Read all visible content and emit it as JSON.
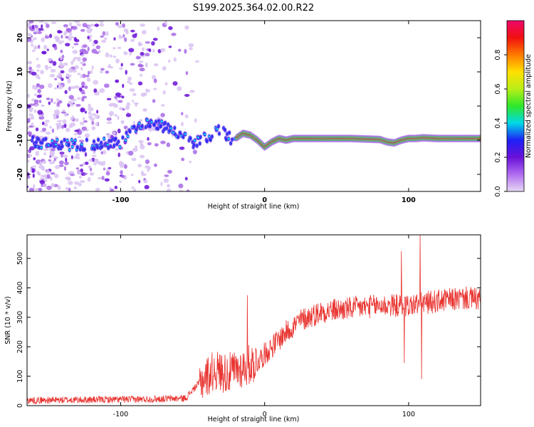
{
  "title": "S199.2025.364.02.00.R22",
  "colors": {
    "axis": "#000000",
    "snr_line": "#e8332f",
    "spec_faint": "#d9c3f2",
    "spec_mid": "#a86ae8",
    "spec_strong": "#6a10d8",
    "spec_blue": "#1e20f5",
    "spec_cyan": "#10d8ee",
    "spec_green": "#2ee82a",
    "spec_red": "#f01010"
  },
  "chart_data": [
    {
      "type": "heatmap",
      "title": "S199.2025.364.02.00.R22",
      "xlabel": "Height of straight line (km)",
      "ylabel": "Frequency (Hz)",
      "xlim": [
        -165,
        150
      ],
      "ylim": [
        -25,
        25
      ],
      "xticks": [
        -100,
        0,
        100
      ],
      "xtick_labels": [
        "-100",
        "0",
        "100"
      ],
      "yticks": [
        20,
        10,
        0,
        -10,
        -20
      ],
      "ytick_labels": [
        "20",
        "10",
        "0",
        "-10",
        "-20"
      ],
      "grid": false,
      "ridge": {
        "x": [
          -165,
          -150,
          -130,
          -110,
          -100,
          -90,
          -80,
          -70,
          -60,
          -50,
          -40,
          -30,
          -22,
          -15,
          -10,
          -5,
          0,
          5,
          10,
          15,
          20,
          30,
          40,
          60,
          80,
          85,
          90,
          95,
          100,
          105,
          110,
          120,
          140,
          150
        ],
        "y": [
          -10.5,
          -11,
          -11.5,
          -11,
          -10.5,
          -7,
          -5,
          -6,
          -8,
          -11,
          -9,
          -7,
          -10,
          -8,
          -8.5,
          -10,
          -12,
          -10.5,
          -9.5,
          -10,
          -9.5,
          -9.5,
          -9.5,
          -9.5,
          -9.8,
          -10.5,
          -10.8,
          -10,
          -9.5,
          -9.5,
          -9.3,
          -9.5,
          -9.5,
          -9.5
        ]
      },
      "colorbar": {
        "label": "Normalized spectral amplitude",
        "range": [
          0,
          1
        ],
        "ticks": [
          0.0,
          0.2,
          0.4,
          0.6,
          0.8
        ],
        "tick_labels": [
          "0.0",
          "0.2",
          "0.4",
          "0.6",
          "0.8"
        ],
        "stops": [
          "#e8d8f5",
          "#b06cf0",
          "#6a10d8",
          "#1e20f5",
          "#00d8e8",
          "#2ee82a",
          "#b8ee18",
          "#ffe000",
          "#ff7a00",
          "#f01010",
          "#f0086a"
        ]
      }
    },
    {
      "type": "line",
      "xlabel": "Height of straight line (km)",
      "ylabel": "SNR (10 * v/v)",
      "xlim": [
        -165,
        150
      ],
      "ylim": [
        0,
        580
      ],
      "xticks": [
        -100,
        0,
        100
      ],
      "xtick_labels": [
        "-100",
        "0",
        "100"
      ],
      "yticks": [
        0,
        100,
        200,
        300,
        400,
        500
      ],
      "ytick_labels": [
        "0",
        "100",
        "200",
        "300",
        "400",
        "500"
      ],
      "grid": false,
      "trend": {
        "x": [
          -165,
          -120,
          -80,
          -55,
          -45,
          -35,
          -25,
          -15,
          -5,
          5,
          15,
          25,
          40,
          60,
          80,
          100,
          120,
          140,
          150
        ],
        "y": [
          18,
          20,
          22,
          25,
          80,
          120,
          110,
          130,
          150,
          200,
          250,
          290,
          320,
          330,
          340,
          340,
          355,
          365,
          360
        ]
      },
      "spikes": [
        {
          "x": -12,
          "y": 375
        },
        {
          "x": 95,
          "y": 525
        },
        {
          "x": 97,
          "y": 145
        },
        {
          "x": 108,
          "y": 580
        },
        {
          "x": 109,
          "y": 90
        }
      ]
    }
  ]
}
